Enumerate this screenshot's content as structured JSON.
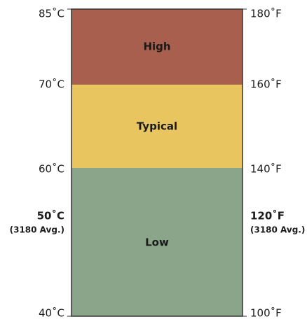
{
  "zones": [
    {
      "label": "High"
    },
    {
      "label": "Typical"
    },
    {
      "label": "Low"
    }
  ],
  "celsius": [
    "85˚C",
    "70˚C",
    "60˚C",
    "40˚C"
  ],
  "fahrenheit": [
    "180˚F",
    "160˚F",
    "140˚F",
    "100˚F"
  ],
  "average": {
    "celsius": "50˚C",
    "fahrenheit": "120˚F",
    "note": "(3180 Avg.)"
  }
}
